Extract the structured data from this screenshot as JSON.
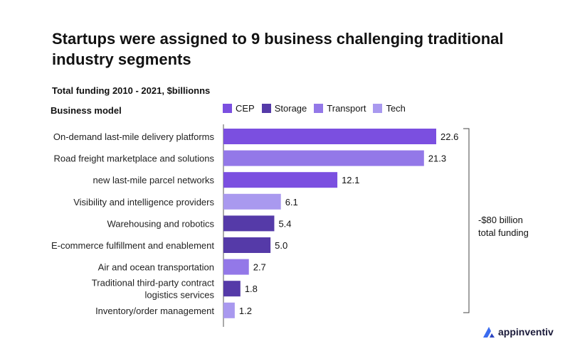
{
  "title": "Startups were assigned to 9 business challenging traditional industry segments",
  "subtitle": "Total funding 2010 - 2021, $billionns",
  "category_header": "Business model",
  "legend": [
    {
      "name": "CEP",
      "color": "#7b4fe0"
    },
    {
      "name": "Storage",
      "color": "#553aa8"
    },
    {
      "name": "Transport",
      "color": "#9378e8"
    },
    {
      "name": "Tech",
      "color": "#a999ef"
    }
  ],
  "annotation": {
    "line1": "-$80 billion",
    "line2": "total funding"
  },
  "logo_text": "appinventiv",
  "chart_data": {
    "type": "bar",
    "orientation": "horizontal",
    "title": "Startups were assigned to 9 business challenging traditional industry segments",
    "subtitle": "Total funding 2010 - 2021, $billionns",
    "xlim": [
      0,
      22.6
    ],
    "categories": [
      [
        "On-demand last-mile delivery platforms"
      ],
      [
        "Road freight marketplace and solutions"
      ],
      [
        "new last-mile parcel networks"
      ],
      [
        "Visibility and intelligence providers"
      ],
      [
        "Warehousing and robotics"
      ],
      [
        "E-commerce fulfillment and enablement"
      ],
      [
        "Air and ocean transportation"
      ],
      [
        "Traditional third-party contract",
        "logistics services"
      ],
      [
        "Inventory/order management"
      ]
    ],
    "values": [
      22.6,
      21.3,
      12.1,
      6.1,
      5.4,
      5.0,
      2.7,
      1.8,
      1.2
    ],
    "value_labels": [
      "22.6",
      "21.3",
      "12.1",
      "6.1",
      "5.4",
      "5.0",
      "2.7",
      "1.8",
      "1.2"
    ],
    "segments": [
      "CEP",
      "Transport",
      "CEP",
      "Tech",
      "Storage",
      "Storage",
      "Transport",
      "Storage",
      "Tech"
    ]
  }
}
